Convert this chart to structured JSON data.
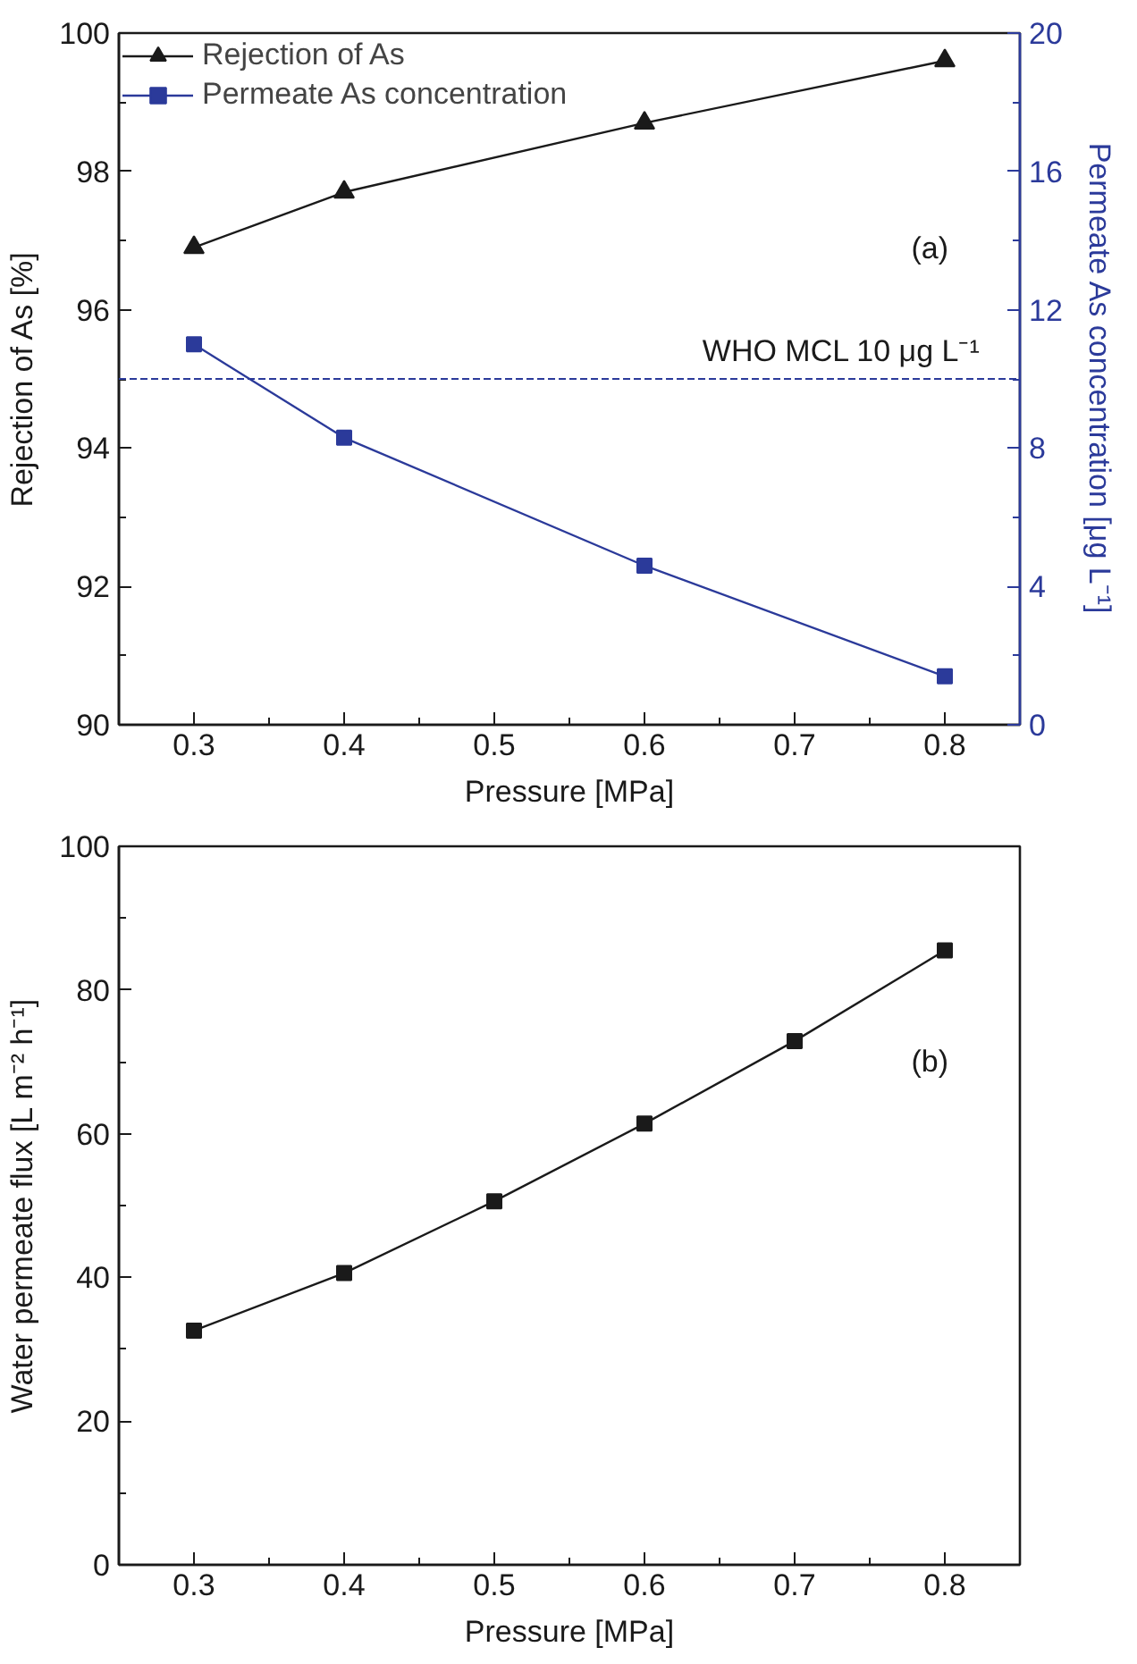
{
  "chart_data": [
    {
      "type": "line",
      "xlabel": "Pressure [MPa]",
      "ylabel": "Rejection of As [%]",
      "y2label": "Permeate As concentration [μg L⁻¹]",
      "x": [
        0.3,
        0.4,
        0.6,
        0.8
      ],
      "series": [
        {
          "name": "Rejection of As",
          "color": "#1a1a1a",
          "marker": "triangle",
          "values": [
            96.9,
            97.7,
            98.7,
            99.6
          ]
        },
        {
          "name": "Permeate As concentration",
          "color": "#2b3a9a",
          "marker": "square",
          "axis": "y2",
          "values": [
            11.0,
            8.3,
            4.6,
            1.4
          ]
        }
      ],
      "xlim": [
        0.25,
        0.85
      ],
      "xticks": [
        {
          "value": 0.25,
          "label": null
        },
        0.3,
        {
          "value": 0.35,
          "label": null
        },
        0.4,
        {
          "value": 0.45,
          "label": null
        },
        0.5,
        {
          "value": 0.55,
          "label": null
        },
        0.6,
        {
          "value": 0.65,
          "label": null
        },
        0.7,
        {
          "value": 0.75,
          "label": null
        },
        0.8,
        {
          "value": 0.85,
          "label": null
        }
      ],
      "ylim": [
        90,
        100
      ],
      "yticks": [
        90,
        {
          "value": 91,
          "label": null
        },
        92,
        {
          "value": 93,
          "label": null
        },
        94,
        {
          "value": 95,
          "label": null
        },
        96,
        {
          "value": 97,
          "label": null
        },
        98,
        {
          "value": 99,
          "label": null
        },
        100
      ],
      "y2lim": [
        0,
        20
      ],
      "y2ticks": [
        0,
        {
          "value": 2,
          "label": null
        },
        4,
        {
          "value": 6,
          "label": null
        },
        8,
        {
          "value": 10,
          "label": null
        },
        12,
        {
          "value": 14,
          "label": null
        },
        16,
        {
          "value": 18,
          "label": null
        },
        20
      ],
      "ref_lines": [
        {
          "axis": "y2",
          "value": 10,
          "label": "WHO MCL 10 μg L⁻¹",
          "color": "#2b3a9a",
          "line_style": "dashed"
        }
      ],
      "annotations": [
        "(a)"
      ],
      "legend": "top left",
      "grid": false
    },
    {
      "type": "line",
      "xlabel": "Pressure [MPa]",
      "ylabel": "Water permeate flux [L m⁻² h⁻¹]",
      "x": [
        0.3,
        0.4,
        0.5,
        0.6,
        0.7,
        0.8
      ],
      "series": [
        {
          "color": "#1a1a1a",
          "marker": "square",
          "values": [
            32.6,
            40.6,
            50.6,
            61.4,
            72.9,
            85.5
          ]
        }
      ],
      "xlim": [
        0.25,
        0.85
      ],
      "xticks": [
        {
          "value": 0.25,
          "label": null
        },
        0.3,
        {
          "value": 0.35,
          "label": null
        },
        0.4,
        {
          "value": 0.45,
          "label": null
        },
        0.5,
        {
          "value": 0.55,
          "label": null
        },
        0.6,
        {
          "value": 0.65,
          "label": null
        },
        0.7,
        {
          "value": 0.75,
          "label": null
        },
        0.8,
        {
          "value": 0.85,
          "label": null
        }
      ],
      "ylim": [
        0,
        100
      ],
      "yticks": [
        0,
        {
          "value": 10,
          "label": null
        },
        20,
        {
          "value": 30,
          "label": null
        },
        40,
        {
          "value": 50,
          "label": null
        },
        60,
        {
          "value": 70,
          "label": null
        },
        80,
        {
          "value": 90,
          "label": null
        },
        100
      ],
      "annotations": [
        "(b)"
      ],
      "grid": false
    }
  ]
}
